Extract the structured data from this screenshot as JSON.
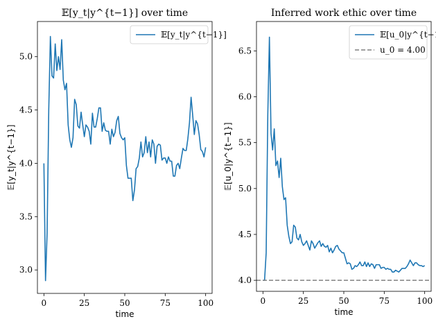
{
  "chart_data": [
    {
      "type": "line",
      "title": "𝔼[y_t|y^{t−1}] over time",
      "xlabel": "time",
      "ylabel": "𝔼[y_t|y^{t−1}]",
      "xlim": [
        -4,
        104
      ],
      "ylim": [
        2.78,
        5.33
      ],
      "xticks": [
        0,
        25,
        50,
        75,
        100
      ],
      "yticks": [
        3.0,
        3.5,
        4.0,
        4.5,
        5.0
      ],
      "xtick_labels": [
        "0",
        "25",
        "50",
        "75",
        "100"
      ],
      "ytick_labels": [
        "3.0",
        "3.5",
        "4.0",
        "4.5",
        "5.0"
      ],
      "legend_position": "upper right",
      "grid": false,
      "series": [
        {
          "name": "𝔼[y_t|y^{t−1}]",
          "color": "#1f77b4",
          "style": "solid",
          "x": [
            0,
            1,
            2,
            3,
            4,
            5,
            6,
            7,
            8,
            9,
            10,
            11,
            12,
            13,
            14,
            15,
            16,
            17,
            18,
            19,
            20,
            21,
            22,
            23,
            24,
            25,
            26,
            27,
            28,
            29,
            30,
            31,
            32,
            33,
            34,
            35,
            36,
            37,
            38,
            39,
            40,
            41,
            42,
            43,
            44,
            45,
            46,
            47,
            48,
            49,
            50,
            51,
            52,
            53,
            54,
            55,
            56,
            57,
            58,
            59,
            60,
            61,
            62,
            63,
            64,
            65,
            66,
            67,
            68,
            69,
            70,
            71,
            72,
            73,
            74,
            75,
            76,
            77,
            78,
            79,
            80,
            81,
            82,
            83,
            84,
            85,
            86,
            87,
            88,
            89,
            90,
            91,
            92,
            93,
            94,
            95,
            96,
            97,
            98,
            99,
            100
          ],
          "values": [
            4.0,
            2.9,
            3.35,
            4.5,
            5.19,
            4.82,
            4.8,
            5.12,
            4.87,
            5.0,
            4.88,
            5.16,
            4.78,
            4.69,
            4.75,
            4.36,
            4.22,
            4.15,
            4.24,
            4.6,
            4.55,
            4.35,
            4.33,
            4.48,
            4.36,
            4.25,
            4.36,
            4.34,
            4.3,
            4.18,
            4.47,
            4.34,
            4.34,
            4.42,
            4.52,
            4.52,
            4.3,
            4.38,
            4.31,
            4.3,
            4.3,
            4.18,
            4.32,
            4.25,
            4.29,
            4.4,
            4.44,
            4.28,
            4.24,
            4.22,
            4.24,
            3.98,
            3.86,
            3.86,
            3.86,
            3.65,
            3.75,
            3.95,
            3.97,
            4.05,
            4.2,
            4.06,
            4.1,
            4.25,
            4.1,
            4.2,
            4.06,
            4.22,
            4.18,
            4.0,
            4.16,
            4.18,
            4.17,
            4.03,
            4.05,
            4.05,
            4.0,
            4.06,
            4.02,
            4.02,
            3.88,
            3.88,
            3.98,
            4.0,
            3.95,
            4.05,
            4.14,
            4.12,
            4.12,
            4.23,
            4.38,
            4.62,
            4.45,
            4.27,
            4.4,
            4.37,
            4.27,
            4.13,
            4.11,
            4.06,
            4.15
          ]
        }
      ]
    },
    {
      "type": "line",
      "title": "Inferred work ethic over time",
      "xlabel": "time",
      "ylabel": "𝔼[u_0|y^{t−1}]",
      "xlim": [
        -4,
        104
      ],
      "ylim": [
        3.88,
        6.82
      ],
      "xticks": [
        0,
        25,
        50,
        75,
        100
      ],
      "yticks": [
        4.0,
        4.5,
        5.0,
        5.5,
        6.0,
        6.5
      ],
      "xtick_labels": [
        "0",
        "25",
        "50",
        "75",
        "100"
      ],
      "ytick_labels": [
        "4.0",
        "4.5",
        "5.0",
        "5.5",
        "6.0",
        "6.5"
      ],
      "legend_position": "upper right",
      "grid": false,
      "series": [
        {
          "name": "𝔼[u_0|y^{t−1}]",
          "color": "#1f77b4",
          "style": "solid",
          "x": [
            0,
            1,
            2,
            3,
            4,
            5,
            6,
            7,
            8,
            9,
            10,
            11,
            12,
            13,
            14,
            15,
            16,
            17,
            18,
            19,
            20,
            21,
            22,
            23,
            24,
            25,
            26,
            27,
            28,
            29,
            30,
            31,
            32,
            33,
            34,
            35,
            36,
            37,
            38,
            39,
            40,
            41,
            42,
            43,
            44,
            45,
            46,
            47,
            48,
            49,
            50,
            51,
            52,
            53,
            54,
            55,
            56,
            57,
            58,
            59,
            60,
            61,
            62,
            63,
            64,
            65,
            66,
            67,
            68,
            69,
            70,
            71,
            72,
            73,
            74,
            75,
            76,
            77,
            78,
            79,
            80,
            81,
            82,
            83,
            84,
            85,
            86,
            87,
            88,
            89,
            90,
            91,
            92,
            93,
            94,
            95,
            96,
            97,
            98,
            99,
            100
          ],
          "values": [
            4.0,
            4.0,
            4.3,
            5.8,
            6.65,
            5.6,
            5.42,
            5.65,
            5.25,
            5.3,
            5.12,
            5.33,
            5.02,
            4.88,
            4.9,
            4.6,
            4.48,
            4.4,
            4.42,
            4.6,
            4.58,
            4.46,
            4.44,
            4.5,
            4.42,
            4.38,
            4.4,
            4.43,
            4.38,
            4.33,
            4.43,
            4.4,
            4.35,
            4.38,
            4.41,
            4.43,
            4.37,
            4.4,
            4.37,
            4.36,
            4.38,
            4.31,
            4.35,
            4.3,
            4.33,
            4.37,
            4.38,
            4.34,
            4.32,
            4.3,
            4.3,
            4.24,
            4.18,
            4.19,
            4.18,
            4.12,
            4.13,
            4.16,
            4.15,
            4.17,
            4.2,
            4.16,
            4.16,
            4.2,
            4.15,
            4.19,
            4.15,
            4.18,
            4.17,
            4.13,
            4.17,
            4.17,
            4.17,
            4.13,
            4.14,
            4.14,
            4.12,
            4.13,
            4.12,
            4.12,
            4.09,
            4.09,
            4.11,
            4.1,
            4.09,
            4.11,
            4.13,
            4.13,
            4.13,
            4.15,
            4.18,
            4.22,
            4.19,
            4.16,
            4.19,
            4.19,
            4.17,
            4.16,
            4.16,
            4.15,
            4.16
          ]
        },
        {
          "name": "u_0 = 4.00",
          "color": "#808080",
          "style": "dashed",
          "x": [
            -4,
            104
          ],
          "values": [
            4.0,
            4.0
          ]
        }
      ]
    }
  ]
}
